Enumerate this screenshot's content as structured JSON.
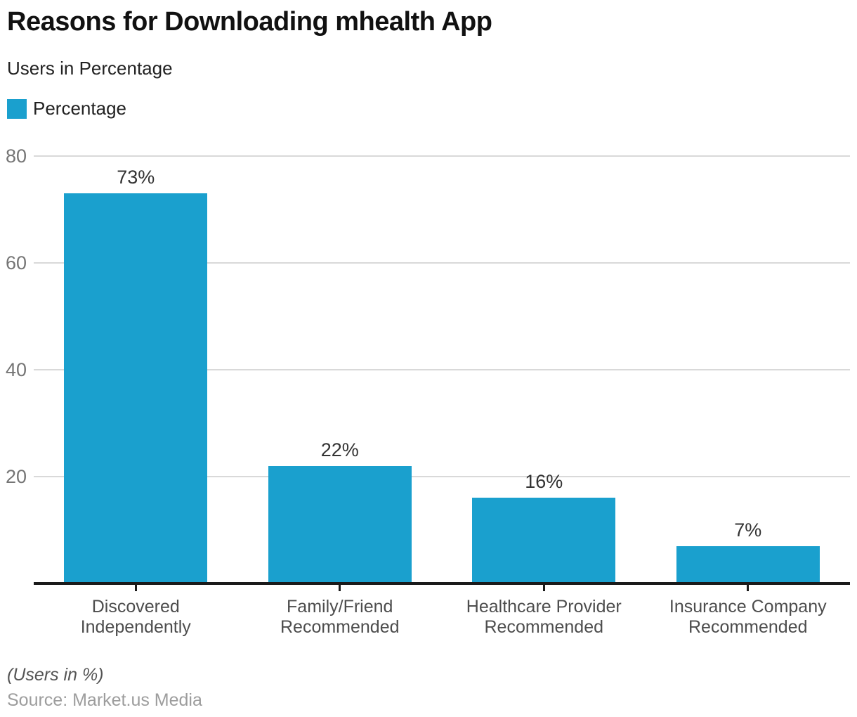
{
  "header": {
    "title": "Reasons for Downloading mhealth App",
    "subtitle": "Users in Percentage"
  },
  "legend": {
    "label": "Percentage",
    "color": "#1aa0ce"
  },
  "chart_data": {
    "type": "bar",
    "title": "Reasons for Downloading mhealth App",
    "subtitle": "Users in Percentage",
    "series_name": "Percentage",
    "categories": [
      "Discovered\nIndependently",
      "Family/Friend\nRecommended",
      "Healthcare Provider\nRecommended",
      "Insurance Company\nRecommended"
    ],
    "values": [
      73,
      22,
      16,
      7
    ],
    "value_labels": [
      "73%",
      "22%",
      "16%",
      "7%"
    ],
    "ylim": [
      0,
      80
    ],
    "yticks": [
      20,
      40,
      60,
      80
    ],
    "grid": true,
    "legend_position": "top-left",
    "bar_color": "#1aa0ce",
    "gridline_color": "#d9d9d9",
    "axis_color": "#1a1a1a"
  },
  "footer": {
    "note": "(Users in %)",
    "source": "Source: Market.us Media"
  }
}
